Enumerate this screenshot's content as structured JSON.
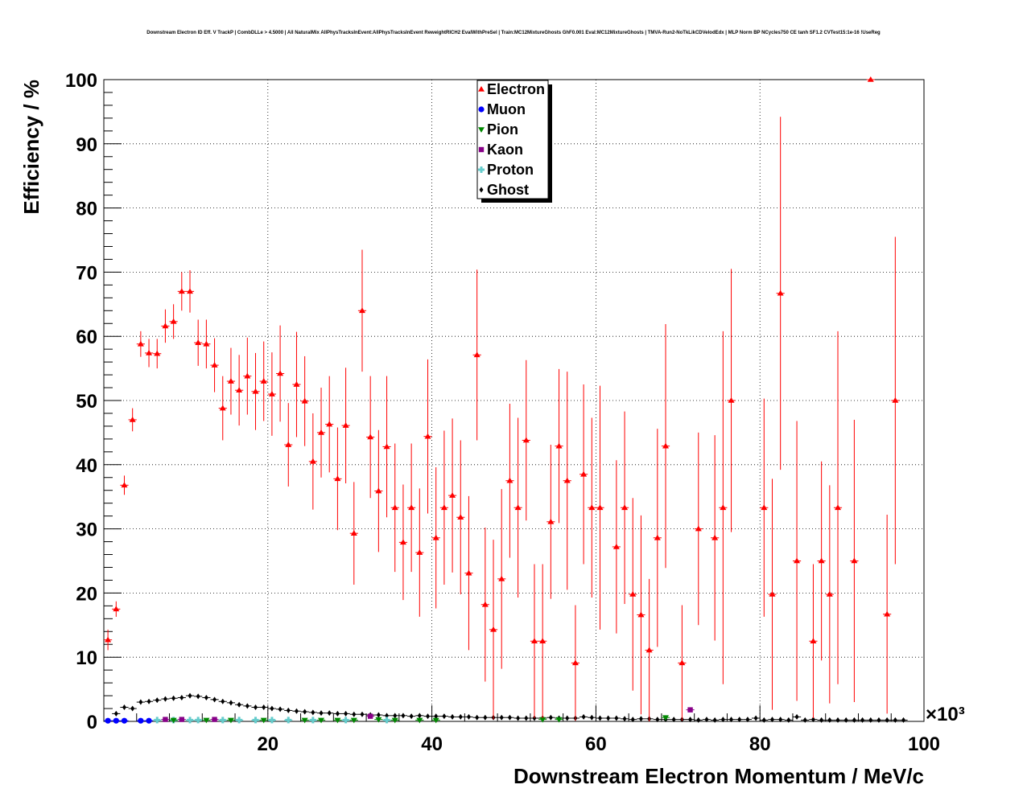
{
  "chart_data": {
    "type": "scatter",
    "title": "Downstream Electron ID Eff. V TrackP | CombDLLe > 4.5000 | All NaturalMix AllPhysTracksInEvent:AllPhysTracksInEvent ReweightRICH2 EvalWithPreSel | Train:MC12MixtureGhosts GhF0.001 Eval:MC12MixtureGhosts | TMVA-Run2-NoTkLikCDVelodEdx | MLP Norm BP NCycles750 CE tanh SF1.2 CVTest15:1e-16 !UseReg",
    "xlabel": "Downstream Electron Momentum / MeV/c",
    "ylabel": "Efficiency / %",
    "x_multiplier_label": "×10³",
    "xlim": [
      0,
      100
    ],
    "ylim": [
      0,
      100
    ],
    "x_ticks": [
      20,
      40,
      60,
      80,
      100
    ],
    "y_ticks": [
      0,
      10,
      20,
      30,
      40,
      50,
      60,
      70,
      80,
      90,
      100
    ],
    "grid": true,
    "legend_position": "top-center",
    "series": [
      {
        "name": "Electron",
        "color": "#ff0000",
        "marker": "triangle",
        "points": [
          [
            0.5,
            12.7,
            1.6
          ],
          [
            1.5,
            17.5,
            1.2
          ],
          [
            2.5,
            36.8,
            1.5
          ],
          [
            3.5,
            47.0,
            1.8
          ],
          [
            4.5,
            58.8,
            2.0
          ],
          [
            5.5,
            57.4,
            2.2
          ],
          [
            6.5,
            57.3,
            2.3
          ],
          [
            7.5,
            61.6,
            2.6
          ],
          [
            8.5,
            62.3,
            2.7
          ],
          [
            9.5,
            67.0,
            3.0
          ],
          [
            10.5,
            67.0,
            3.3
          ],
          [
            11.5,
            59.0,
            3.6
          ],
          [
            12.5,
            58.8,
            3.8
          ],
          [
            13.5,
            55.5,
            4.2
          ],
          [
            14.5,
            48.8,
            5.0
          ],
          [
            15.5,
            53.0,
            5.2
          ],
          [
            16.5,
            51.6,
            5.5
          ],
          [
            17.5,
            53.8,
            6.0
          ],
          [
            18.5,
            51.4,
            6.0
          ],
          [
            19.5,
            53.0,
            6.2
          ],
          [
            20.5,
            51.0,
            6.5
          ],
          [
            21.5,
            54.2,
            7.5
          ],
          [
            22.5,
            43.1,
            6.5
          ],
          [
            23.5,
            52.5,
            8.2
          ],
          [
            24.5,
            49.9,
            7.0
          ],
          [
            25.5,
            40.5,
            7.5
          ],
          [
            26.5,
            45.0,
            7.0
          ],
          [
            27.5,
            46.3,
            7.5
          ],
          [
            28.5,
            37.8,
            8.0
          ],
          [
            29.5,
            46.1,
            9.0
          ],
          [
            30.5,
            29.3,
            8.0
          ],
          [
            31.5,
            64.0,
            9.5
          ],
          [
            32.5,
            44.3,
            9.5
          ],
          [
            33.5,
            35.9,
            9.5
          ],
          [
            34.5,
            42.8,
            11.0
          ],
          [
            35.5,
            33.3,
            10.0
          ],
          [
            36.5,
            27.9,
            9.0
          ],
          [
            37.5,
            33.3,
            10.0
          ],
          [
            38.5,
            26.3,
            10.0
          ],
          [
            39.5,
            44.4,
            12.0
          ],
          [
            40.5,
            28.6,
            11.0
          ],
          [
            41.5,
            33.3,
            12.0
          ],
          [
            42.5,
            35.2,
            12.0
          ],
          [
            43.5,
            31.8,
            12.0
          ],
          [
            44.5,
            23.1,
            12.0
          ],
          [
            45.5,
            57.1,
            13.3
          ],
          [
            46.5,
            18.2,
            12.0
          ],
          [
            47.5,
            14.3,
            14.0
          ],
          [
            48.5,
            22.2,
            14.0
          ],
          [
            49.5,
            37.5,
            12.0
          ],
          [
            50.5,
            33.3,
            14.0
          ],
          [
            51.5,
            43.8,
            12.5
          ],
          [
            52.5,
            12.5,
            12.0
          ],
          [
            53.5,
            12.5,
            12.0
          ],
          [
            54.5,
            31.1,
            12.0
          ],
          [
            55.5,
            42.9,
            12.0
          ],
          [
            56.5,
            37.5,
            17.0
          ],
          [
            57.5,
            9.1,
            9.0
          ],
          [
            58.5,
            38.5,
            14.0
          ],
          [
            59.5,
            33.3,
            14.0
          ],
          [
            60.5,
            33.3,
            19.0
          ],
          [
            62.5,
            27.2,
            13.5
          ],
          [
            63.5,
            33.3,
            15.0
          ],
          [
            64.5,
            19.8,
            15.0
          ],
          [
            65.5,
            16.6,
            15.5
          ],
          [
            66.5,
            11.1,
            11.1
          ],
          [
            67.5,
            28.6,
            17.0
          ],
          [
            68.5,
            42.9,
            19.0
          ],
          [
            70.5,
            9.1,
            9.0
          ],
          [
            72.5,
            30.0,
            15.0
          ],
          [
            74.5,
            28.6,
            16.0
          ],
          [
            75.5,
            33.3,
            27.5
          ],
          [
            76.5,
            50.0,
            20.5
          ],
          [
            80.5,
            33.3,
            17.0
          ],
          [
            81.5,
            19.8,
            18.0
          ],
          [
            82.5,
            66.7,
            27.5
          ],
          [
            84.5,
            25.0,
            21.8
          ],
          [
            86.5,
            12.5,
            12.0
          ],
          [
            87.5,
            25.0,
            15.5
          ],
          [
            88.5,
            19.8,
            17.0
          ],
          [
            89.5,
            33.3,
            27.5
          ],
          [
            91.5,
            25.0,
            22.0
          ],
          [
            93.5,
            100.0,
            0.0
          ],
          [
            95.5,
            16.7,
            15.5
          ],
          [
            96.5,
            50.0,
            25.5
          ]
        ]
      },
      {
        "name": "Muon",
        "color": "#0000ff",
        "marker": "circle",
        "points": [
          [
            0.5,
            0.1
          ],
          [
            1.5,
            0.1
          ],
          [
            2.5,
            0.1
          ],
          [
            4.5,
            0.1
          ],
          [
            5.5,
            0.1
          ]
        ]
      },
      {
        "name": "Pion",
        "color": "#008800",
        "marker": "triangle-down",
        "points": [
          [
            8.5,
            0.2
          ],
          [
            12.5,
            0.2
          ],
          [
            15.5,
            0.2
          ],
          [
            19.5,
            0.2
          ],
          [
            24.5,
            0.2
          ],
          [
            26.5,
            0.2
          ],
          [
            28.5,
            0.2
          ],
          [
            30.5,
            0.2
          ],
          [
            33.5,
            0.3
          ],
          [
            35.5,
            0.2
          ],
          [
            38.5,
            0.2
          ],
          [
            40.5,
            0.2
          ],
          [
            53.5,
            0.3
          ],
          [
            55.5,
            0.3
          ],
          [
            68.5,
            0.6
          ]
        ]
      },
      {
        "name": "Kaon",
        "color": "#880088",
        "marker": "square",
        "points": [
          [
            7.5,
            0.3
          ],
          [
            9.5,
            0.3
          ],
          [
            13.5,
            0.3
          ],
          [
            32.5,
            0.8
          ],
          [
            71.5,
            1.8
          ]
        ]
      },
      {
        "name": "Proton",
        "color": "#66cccc",
        "marker": "cross",
        "points": [
          [
            6.5,
            0.2
          ],
          [
            8.5,
            0.2
          ],
          [
            10.5,
            0.2
          ],
          [
            11.5,
            0.2
          ],
          [
            14.5,
            0.2
          ],
          [
            16.5,
            0.2
          ],
          [
            18.5,
            0.2
          ],
          [
            20.5,
            0.2
          ],
          [
            22.5,
            0.2
          ],
          [
            25.5,
            0.2
          ],
          [
            29.5,
            0.2
          ],
          [
            34.5,
            0.2
          ]
        ]
      },
      {
        "name": "Ghost",
        "color": "#000000",
        "marker": "diamond",
        "points": [
          [
            1.5,
            1.2
          ],
          [
            2.5,
            2.2
          ],
          [
            3.5,
            2.0
          ],
          [
            4.5,
            3.0
          ],
          [
            5.5,
            3.1
          ],
          [
            6.5,
            3.3
          ],
          [
            7.5,
            3.5
          ],
          [
            8.5,
            3.6
          ],
          [
            9.5,
            3.7
          ],
          [
            10.5,
            4.0
          ],
          [
            11.5,
            3.9
          ],
          [
            12.5,
            3.7
          ],
          [
            13.5,
            3.4
          ],
          [
            14.5,
            3.1
          ],
          [
            15.5,
            2.9
          ],
          [
            16.5,
            2.6
          ],
          [
            17.5,
            2.4
          ],
          [
            18.5,
            2.2
          ],
          [
            19.5,
            2.2
          ],
          [
            20.5,
            2.0
          ],
          [
            21.5,
            1.9
          ],
          [
            22.5,
            1.7
          ],
          [
            23.5,
            1.6
          ],
          [
            24.5,
            1.5
          ],
          [
            25.5,
            1.4
          ],
          [
            26.5,
            1.3
          ],
          [
            27.5,
            1.3
          ],
          [
            28.5,
            1.2
          ],
          [
            29.5,
            1.2
          ],
          [
            30.5,
            1.1
          ],
          [
            31.5,
            1.1
          ],
          [
            32.5,
            1.0
          ],
          [
            33.5,
            1.0
          ],
          [
            34.5,
            0.9
          ],
          [
            35.5,
            0.9
          ],
          [
            36.5,
            0.9
          ],
          [
            37.5,
            0.8
          ],
          [
            38.5,
            0.9
          ],
          [
            39.5,
            0.8
          ],
          [
            40.5,
            0.8
          ],
          [
            41.5,
            0.8
          ],
          [
            42.5,
            0.7
          ],
          [
            43.5,
            0.7
          ],
          [
            44.5,
            0.7
          ],
          [
            45.5,
            0.6
          ],
          [
            46.5,
            0.6
          ],
          [
            47.5,
            0.6
          ],
          [
            48.5,
            0.6
          ],
          [
            49.5,
            0.6
          ],
          [
            50.5,
            0.5
          ],
          [
            51.5,
            0.5
          ],
          [
            52.5,
            0.5
          ],
          [
            53.5,
            0.5
          ],
          [
            54.5,
            0.6
          ],
          [
            55.5,
            0.5
          ],
          [
            56.5,
            0.5
          ],
          [
            57.5,
            0.5
          ],
          [
            58.5,
            0.7
          ],
          [
            59.5,
            0.6
          ],
          [
            60.5,
            0.5
          ],
          [
            61.5,
            0.5
          ],
          [
            62.5,
            0.5
          ],
          [
            63.5,
            0.4
          ],
          [
            64.5,
            0.3
          ],
          [
            65.5,
            0.4
          ],
          [
            66.5,
            0.4
          ],
          [
            67.5,
            0.3
          ],
          [
            68.5,
            0.3
          ],
          [
            69.5,
            0.3
          ],
          [
            70.5,
            0.3
          ],
          [
            71.5,
            0.3
          ],
          [
            72.5,
            0.2
          ],
          [
            73.5,
            0.3
          ],
          [
            74.5,
            0.2
          ],
          [
            75.5,
            0.3
          ],
          [
            76.5,
            0.3
          ],
          [
            77.5,
            0.3
          ],
          [
            78.5,
            0.3
          ],
          [
            79.5,
            0.5
          ],
          [
            80.5,
            0.2
          ],
          [
            81.5,
            0.3
          ],
          [
            82.5,
            0.3
          ],
          [
            83.5,
            0.2
          ],
          [
            84.5,
            0.7
          ],
          [
            85.5,
            0.2
          ],
          [
            86.5,
            0.3
          ],
          [
            87.5,
            0.2
          ],
          [
            88.5,
            0.2
          ],
          [
            89.5,
            0.2
          ],
          [
            90.5,
            0.2
          ],
          [
            91.5,
            0.2
          ],
          [
            92.5,
            0.2
          ],
          [
            93.5,
            0.2
          ],
          [
            94.5,
            0.2
          ],
          [
            95.5,
            0.2
          ],
          [
            96.5,
            0.2
          ],
          [
            97.5,
            0.2
          ]
        ]
      }
    ]
  }
}
